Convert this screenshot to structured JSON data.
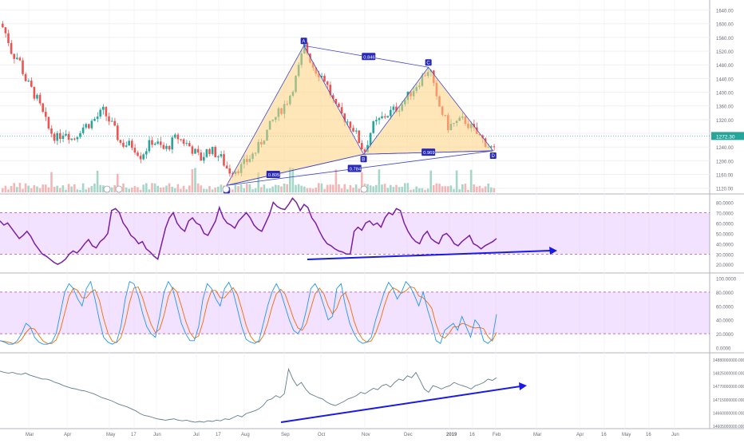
{
  "chart_data": {
    "type": "candlestick",
    "price": {
      "y_ticks": [
        "1640.00",
        "1600.00",
        "1560.00",
        "1520.00",
        "1480.00",
        "1440.00",
        "1400.00",
        "1360.00",
        "1320.00",
        "1280.00",
        "1240.00",
        "1200.00",
        "1160.00",
        "1120.00"
      ],
      "last_price_label": "1272.30",
      "last_price": 1272.3,
      "ylim": [
        1110,
        1660
      ],
      "colors": {
        "up": "#26a69a",
        "down": "#ef5350",
        "pattern_line": "#3f48cc",
        "pattern_fill": "#ffd27f"
      },
      "harmonic_pattern": {
        "points": [
          {
            "label": "X",
            "t": 0.455,
            "y": 1128
          },
          {
            "label": "A",
            "t": 0.61,
            "y": 1536
          },
          {
            "label": "B",
            "t": 0.73,
            "y": 1219
          },
          {
            "label": "C",
            "t": 0.86,
            "y": 1473
          },
          {
            "label": "D",
            "t": 0.99,
            "y": 1229
          }
        ],
        "ratios": [
          {
            "text": "0.846",
            "between": "A-C"
          },
          {
            "text": "0.784",
            "between": "X-B"
          },
          {
            "text": "0.805",
            "between": "X-B"
          },
          {
            "text": "0.969",
            "between": "B-D"
          }
        ]
      }
    },
    "rsi": {
      "y_ticks": [
        "80.0000",
        "70.0000",
        "60.0000",
        "50.0000",
        "40.0000",
        "30.0000",
        "20.0000"
      ],
      "ylim": [
        14,
        85
      ],
      "band": [
        30,
        70
      ],
      "series_color": "#7b1fa2",
      "series": [
        62,
        58,
        60,
        55,
        50,
        45,
        48,
        52,
        47,
        40,
        35,
        30,
        28,
        25,
        22,
        20,
        22,
        25,
        30,
        33,
        31,
        35,
        40,
        44,
        38,
        36,
        42,
        45,
        50,
        72,
        74,
        70,
        60,
        55,
        48,
        45,
        40,
        42,
        35,
        32,
        28,
        25,
        40,
        55,
        65,
        70,
        60,
        55,
        52,
        62,
        65,
        60,
        58,
        50,
        48,
        55,
        62,
        75,
        65,
        60,
        58,
        55,
        62,
        66,
        70,
        65,
        58,
        54,
        52,
        60,
        68,
        80,
        76,
        74,
        73,
        78,
        84,
        80,
        72,
        78,
        75,
        65,
        60,
        52,
        45,
        40,
        38,
        35,
        33,
        32,
        30,
        30,
        52,
        56,
        53,
        60,
        62,
        58,
        60,
        56,
        65,
        70,
        68,
        74,
        72,
        60,
        52,
        46,
        42,
        40,
        48,
        52,
        45,
        42,
        40,
        48,
        50,
        46,
        40,
        38,
        42,
        45,
        48,
        40,
        38,
        35,
        38,
        40,
        42,
        45
      ]
    },
    "stoch": {
      "y_ticks": [
        "100.0000",
        "80.0000",
        "60.0000",
        "40.0000",
        "20.0000",
        "0.0000"
      ],
      "ylim": [
        -4,
        104
      ],
      "band": [
        20,
        80
      ],
      "k_color": "#2196f3",
      "d_color": "#ef6c00",
      "k_series": [
        10,
        8,
        5,
        5,
        10,
        20,
        35,
        30,
        15,
        8,
        5,
        5,
        8,
        20,
        50,
        80,
        92,
        85,
        70,
        60,
        85,
        95,
        70,
        40,
        15,
        8,
        5,
        8,
        30,
        70,
        95,
        92,
        75,
        50,
        30,
        20,
        15,
        45,
        80,
        95,
        85,
        60,
        35,
        20,
        10,
        10,
        30,
        70,
        92,
        85,
        70,
        60,
        85,
        94,
        80,
        55,
        30,
        12,
        8,
        6,
        10,
        35,
        60,
        80,
        92,
        80,
        60,
        40,
        25,
        20,
        30,
        55,
        85,
        92,
        80,
        60,
        40,
        45,
        85,
        92,
        60,
        35,
        20,
        10,
        6,
        8,
        15,
        40,
        60,
        80,
        94,
        85,
        70,
        80,
        95,
        88,
        75,
        60,
        80,
        55,
        35,
        10,
        6,
        25,
        30,
        35,
        25,
        45,
        30,
        15,
        40,
        32,
        10,
        6,
        12,
        48
      ]
    },
    "obv": {
      "y_ticks": [
        "14880000000.0000",
        "14825000000.0000",
        "14770000000.0000",
        "14715000000.0000",
        "14660000000.0000",
        "14605000000.0000"
      ],
      "ylim": [
        0,
        100
      ],
      "series_color": "#607d8b",
      "series": [
        82,
        80,
        79,
        80,
        78,
        77,
        79,
        76,
        74,
        72,
        70,
        70,
        68,
        65,
        63,
        60,
        58,
        56,
        55,
        53,
        52,
        50,
        48,
        45,
        42,
        40,
        38,
        35,
        32,
        30,
        28,
        25,
        22,
        18,
        15,
        14,
        12,
        10,
        9,
        8,
        9,
        10,
        8,
        7,
        8,
        6,
        5,
        6,
        5,
        7,
        6,
        8,
        7,
        10,
        9,
        12,
        15,
        13,
        18,
        20,
        22,
        25,
        30,
        38,
        40,
        45,
        42,
        48,
        85,
        70,
        60,
        65,
        55,
        48,
        45,
        42,
        40,
        35,
        32,
        30,
        33,
        36,
        40,
        42,
        45,
        50,
        48,
        52,
        56,
        54,
        60,
        62,
        58,
        65,
        70,
        68,
        75,
        72,
        80,
        68,
        55,
        50,
        60,
        58,
        55,
        58,
        60,
        65,
        62,
        60,
        58,
        55,
        60,
        62,
        65,
        70,
        68,
        72
      ]
    },
    "x_axis": {
      "ticks": [
        "Mar",
        "Apr",
        "May",
        "17",
        "Jun",
        "Jul",
        "17",
        "Aug",
        "Sep",
        "Oct",
        "Nov",
        "Dec",
        "2019",
        "16",
        "Feb",
        "Mar",
        "Apr",
        "16",
        "May",
        "16",
        "Jun"
      ]
    }
  }
}
